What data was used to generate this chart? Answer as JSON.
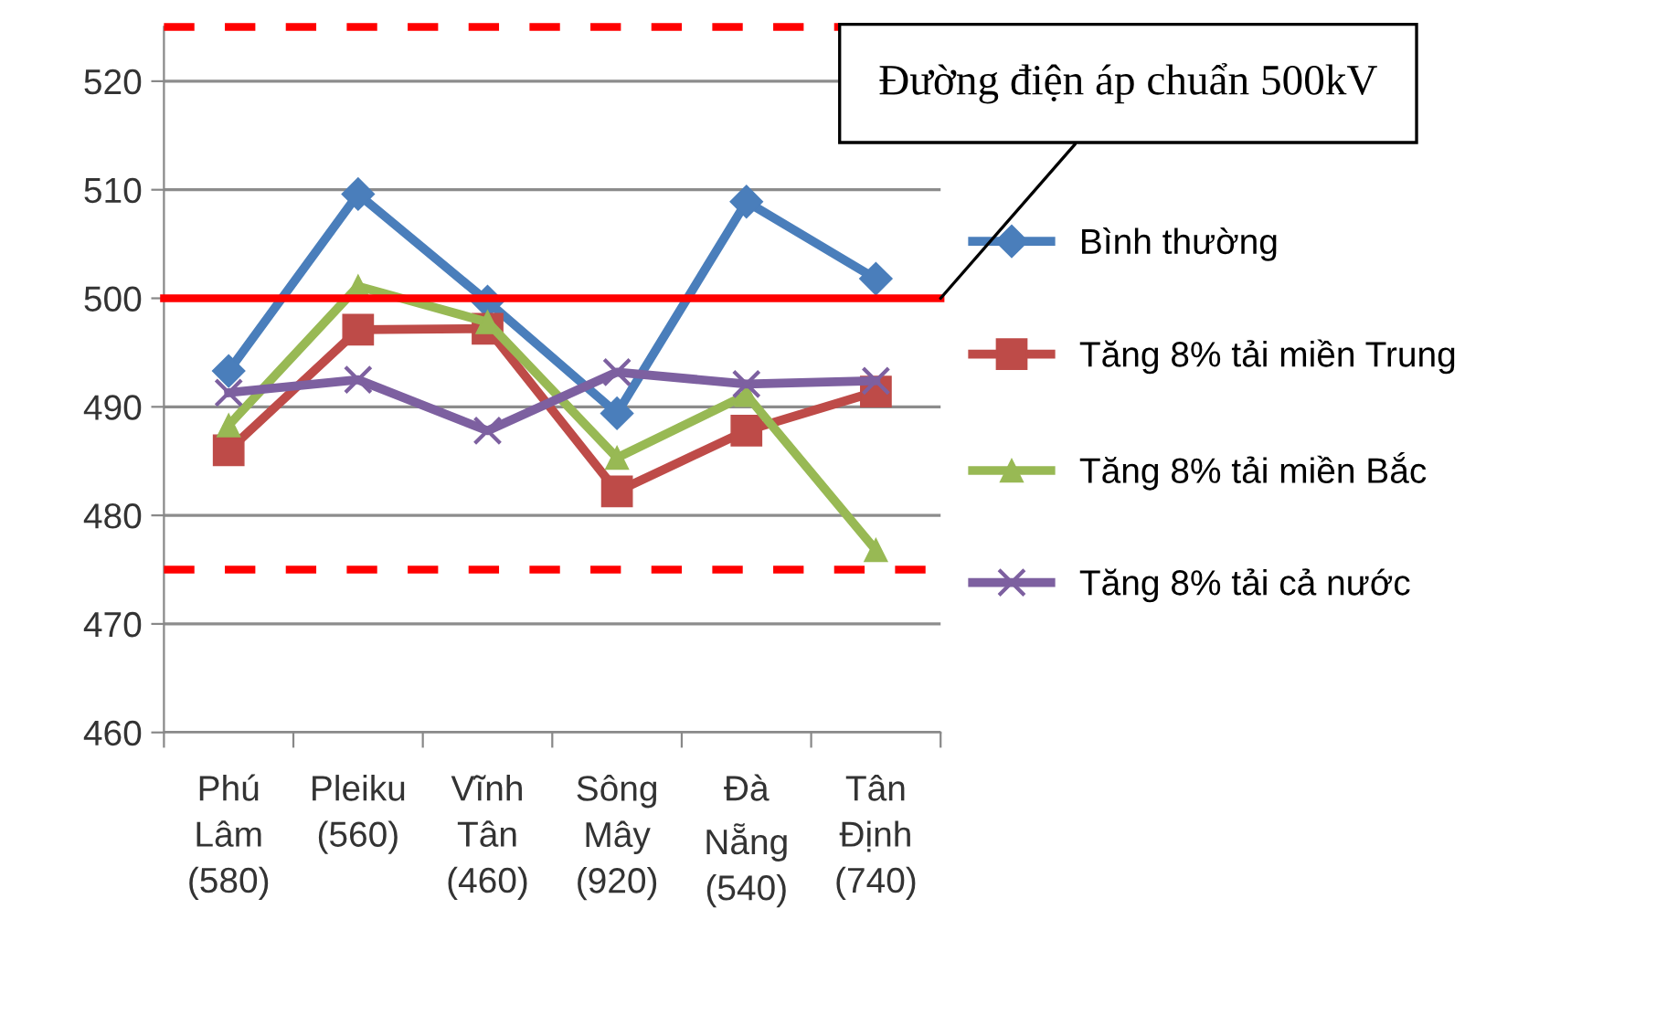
{
  "chart_data": {
    "type": "line",
    "categories": [
      "Phú Lâm (580)",
      "Pleiku (560)",
      "Vĩnh Tân (460)",
      "Sông Mây (920)",
      "Đà Nẵng (540)",
      "Tân Định (740)"
    ],
    "series": [
      {
        "name": "Bình thường",
        "color": "#4a7ebb",
        "marker": "diamond",
        "values": [
          493.3,
          509.6,
          499.7,
          489.4,
          508.9,
          501.8
        ]
      },
      {
        "name": "Tăng 8% tải miền Trung",
        "color": "#be4b48",
        "marker": "square",
        "values": [
          486.0,
          497.1,
          497.2,
          482.2,
          487.8,
          491.4
        ]
      },
      {
        "name": "Tăng 8% tải miền Bắc",
        "color": "#98b954",
        "marker": "triangle",
        "values": [
          488.3,
          501.1,
          497.8,
          485.3,
          491.1,
          476.8
        ]
      },
      {
        "name": "Tăng 8% tải cả nước",
        "color": "#7d60a0",
        "marker": "cross",
        "values": [
          491.3,
          492.5,
          487.8,
          493.2,
          492.1,
          492.4
        ]
      }
    ],
    "ylim": [
      460,
      525
    ],
    "yticks": [
      460,
      470,
      480,
      490,
      500,
      510,
      520
    ],
    "grid": "y",
    "legend": "right",
    "ref_lines": [
      {
        "axis": "y",
        "value": 500,
        "color": "#ff0000",
        "line_style": "solid",
        "label": "Đường điện áp chuẩn 500kV"
      },
      {
        "axis": "y",
        "value": 475,
        "color": "#ff0000",
        "line_style": "dashed"
      },
      {
        "axis": "y",
        "value": 525,
        "color": "#ff0000",
        "line_style": "dashed"
      }
    ]
  }
}
